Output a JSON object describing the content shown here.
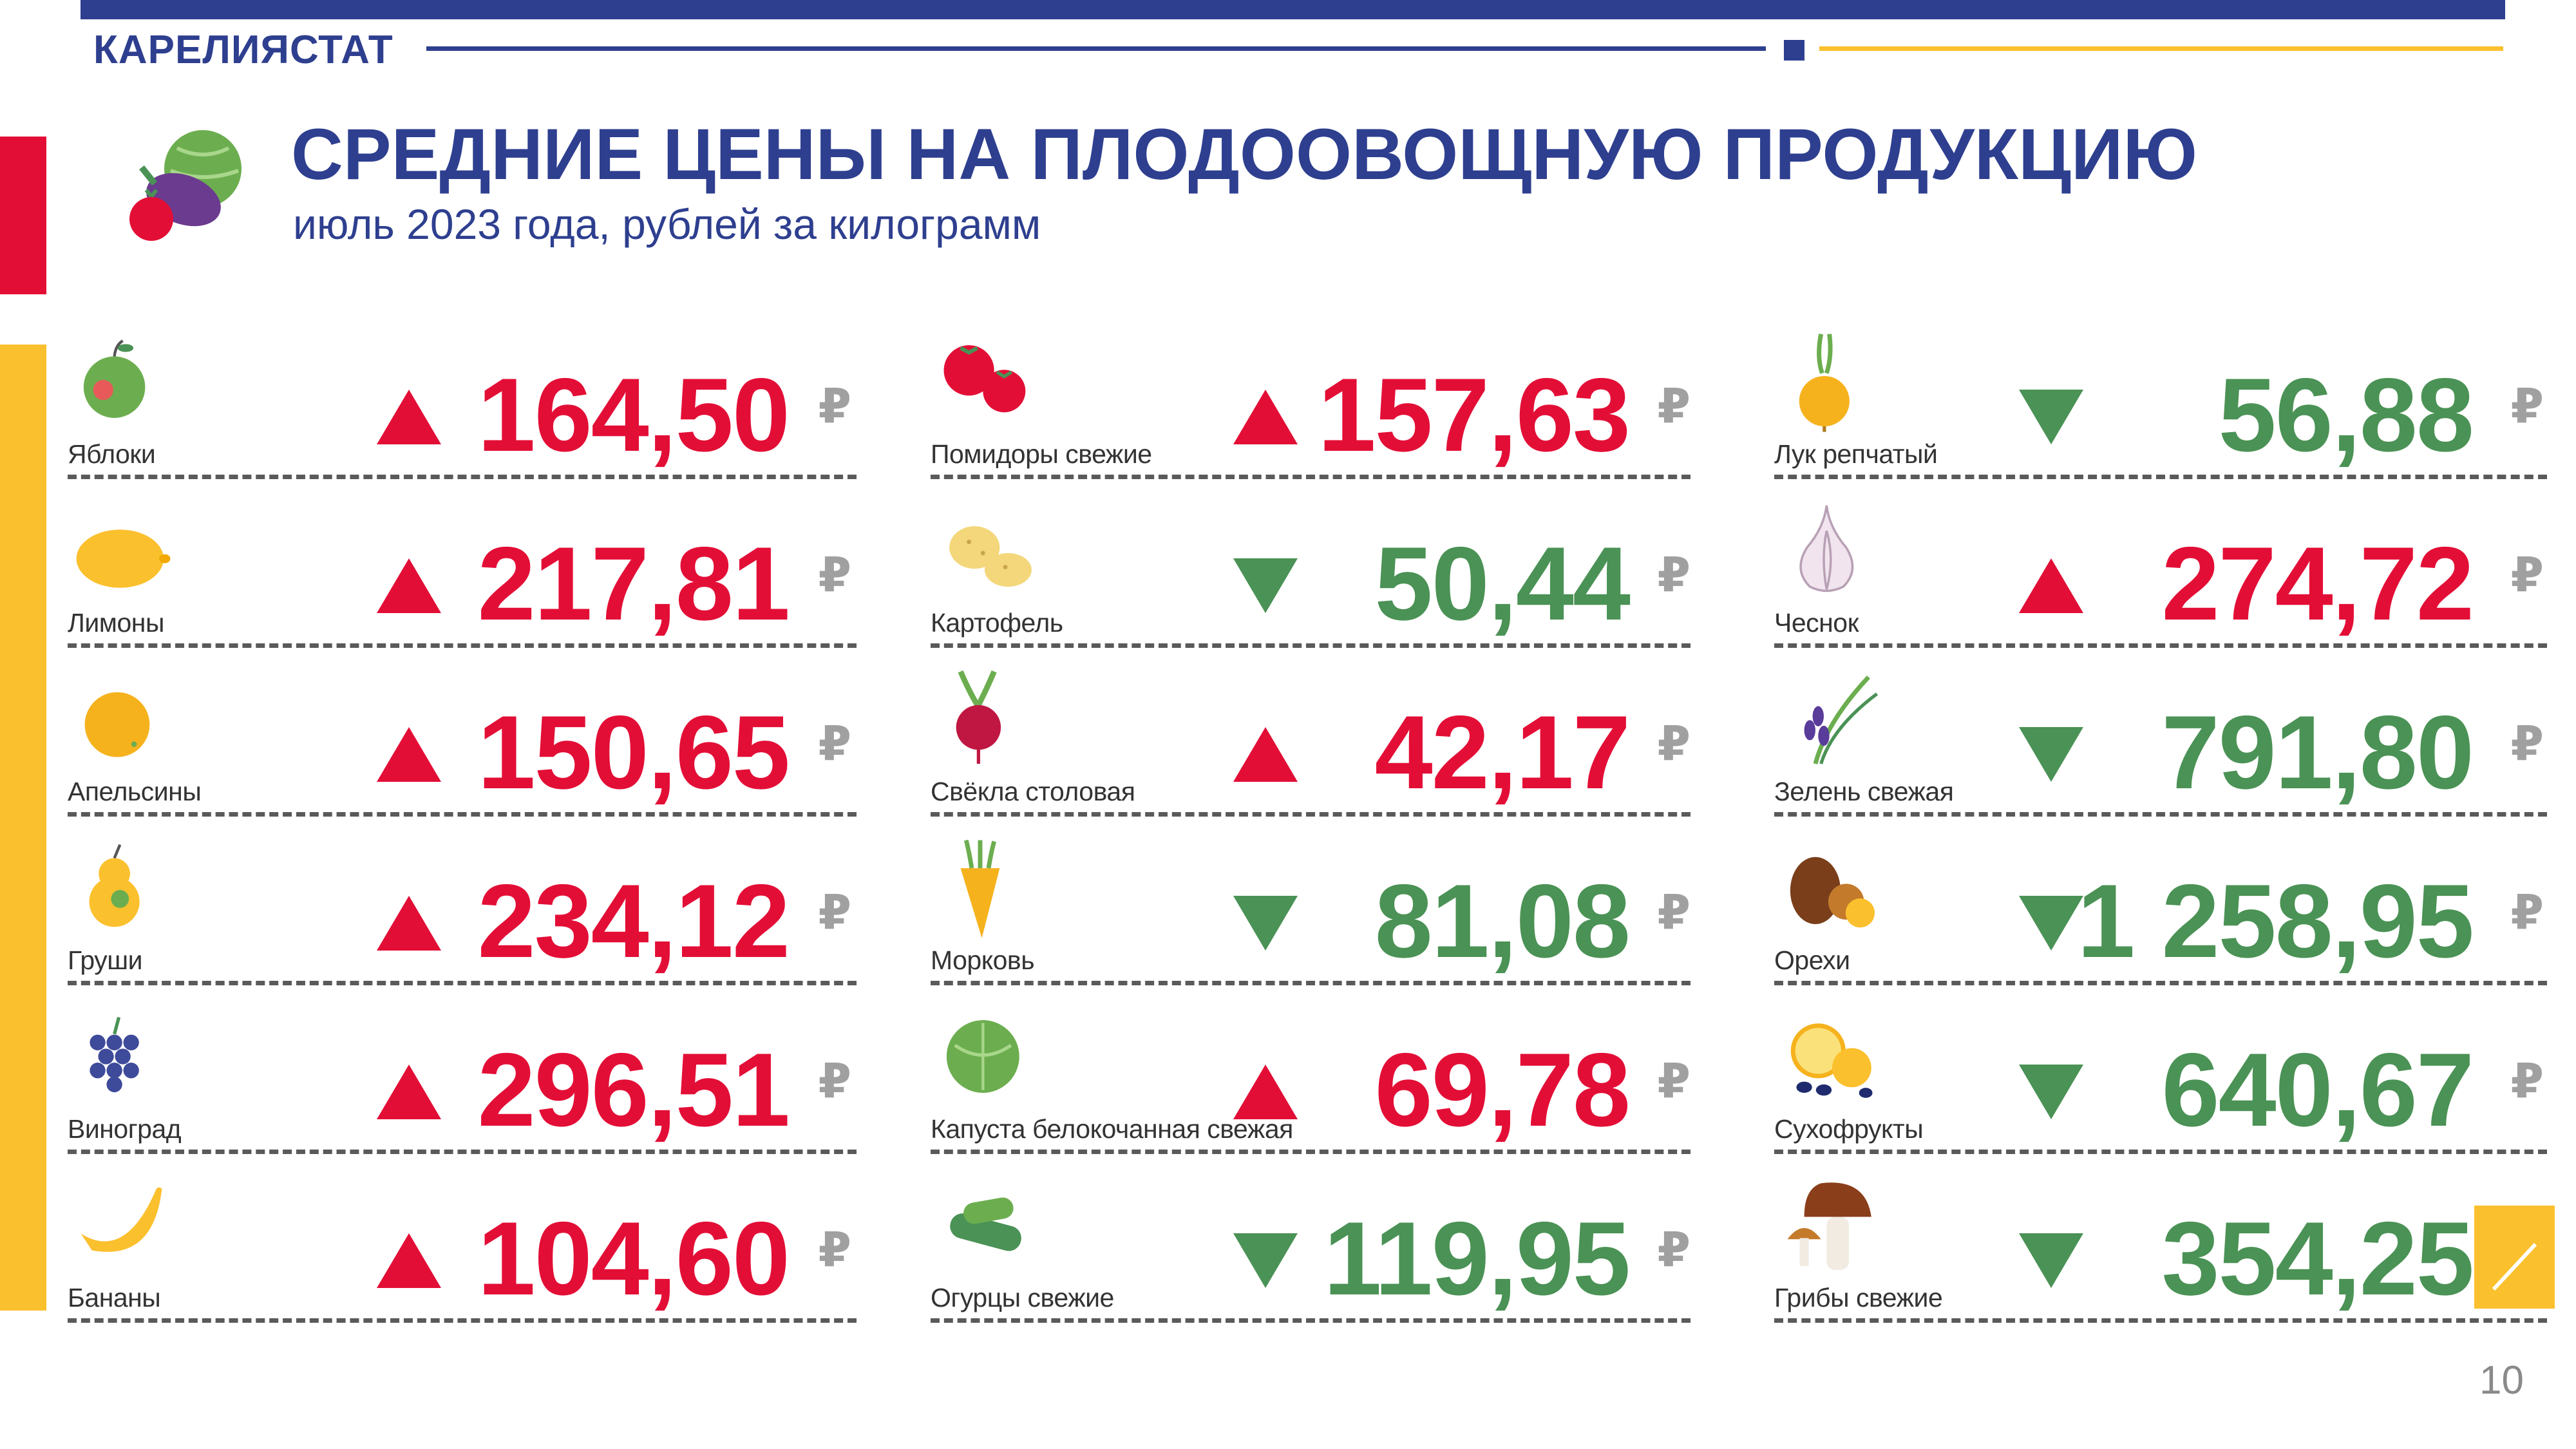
{
  "header": {
    "brand": "КАРЕЛИЯСТАТ",
    "title": "СРЕДНИЕ ЦЕНЫ НА ПЛОДООВОЩНУЮ ПРОДУКЦИЮ",
    "subtitle": "июль 2023 года, рублей за килограмм"
  },
  "page_number": "10",
  "currency": "₽",
  "colors": {
    "blue": "#2e3f8f",
    "red": "#e30e36",
    "green": "#4a9255",
    "yellow": "#fbc02d"
  },
  "columns": [
    {
      "items": [
        {
          "name": "Яблоки",
          "price": "164,50",
          "trend": "up",
          "icon": "apple-icon"
        },
        {
          "name": "Лимоны",
          "price": "217,81",
          "trend": "up",
          "icon": "lemon-icon"
        },
        {
          "name": "Апельсины",
          "price": "150,65",
          "trend": "up",
          "icon": "orange-icon"
        },
        {
          "name": "Груши",
          "price": "234,12",
          "trend": "up",
          "icon": "pear-icon"
        },
        {
          "name": "Виноград",
          "price": "296,51",
          "trend": "up",
          "icon": "grapes-icon"
        },
        {
          "name": "Бананы",
          "price": "104,60",
          "trend": "up",
          "icon": "banana-icon"
        }
      ]
    },
    {
      "items": [
        {
          "name": "Помидоры свежие",
          "price": "157,63",
          "trend": "up",
          "icon": "tomato-icon"
        },
        {
          "name": "Картофель",
          "price": "50,44",
          "trend": "down",
          "icon": "potato-icon"
        },
        {
          "name": "Свёкла столовая",
          "price": "42,17",
          "trend": "up",
          "icon": "beet-icon"
        },
        {
          "name": "Морковь",
          "price": "81,08",
          "trend": "down",
          "icon": "carrot-icon"
        },
        {
          "name": "Капуста белокочанная свежая",
          "price": "69,78",
          "trend": "up",
          "icon": "cabbage-icon"
        },
        {
          "name": "Огурцы свежие",
          "price": "119,95",
          "trend": "down",
          "icon": "cucumber-icon"
        }
      ]
    },
    {
      "items": [
        {
          "name": "Лук репчатый",
          "price": "56,88",
          "trend": "down",
          "icon": "onion-icon"
        },
        {
          "name": "Чеснок",
          "price": "274,72",
          "trend": "up",
          "icon": "garlic-icon"
        },
        {
          "name": "Зелень свежая",
          "price": "791,80",
          "trend": "down",
          "icon": "greens-icon"
        },
        {
          "name": "Орехи",
          "price": "1 258,95",
          "trend": "down",
          "icon": "nuts-icon"
        },
        {
          "name": "Сухофрукты",
          "price": "640,67",
          "trend": "down",
          "icon": "dried-fruits-icon"
        },
        {
          "name": "Грибы свежие",
          "price": "354,25",
          "trend": "down",
          "icon": "mushroom-icon"
        }
      ]
    }
  ]
}
